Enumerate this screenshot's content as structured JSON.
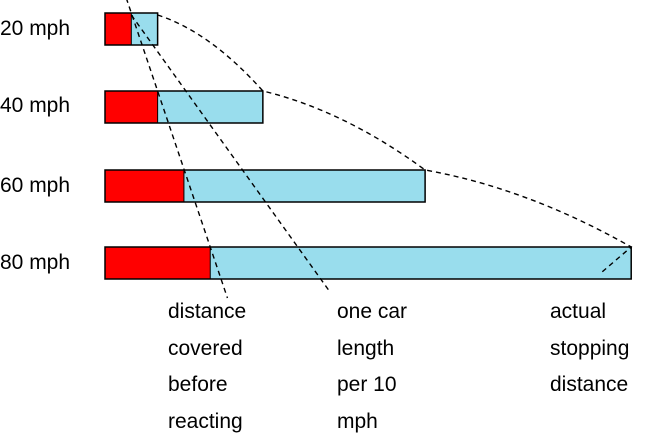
{
  "chart_data": {
    "type": "bar",
    "orientation": "horizontal",
    "stacked": true,
    "categories": [
      "20 mph",
      "40 mph",
      "60 mph",
      "80 mph"
    ],
    "series": [
      {
        "color": "#ff0000",
        "values": [
          6,
          12,
          18,
          24
        ]
      },
      {
        "color": "#99dded",
        "values": [
          6,
          24,
          55,
          96
        ]
      }
    ],
    "xlim": [
      0,
      120
    ],
    "grid": false,
    "legend": "none",
    "annotations": [
      {
        "lines": [
          "distance",
          "covered",
          "before",
          "reacting"
        ]
      },
      {
        "lines": [
          "one car",
          "length",
          "per 10",
          "mph"
        ]
      },
      {
        "lines": [
          "actual",
          "stopping",
          "distance"
        ]
      }
    ]
  }
}
